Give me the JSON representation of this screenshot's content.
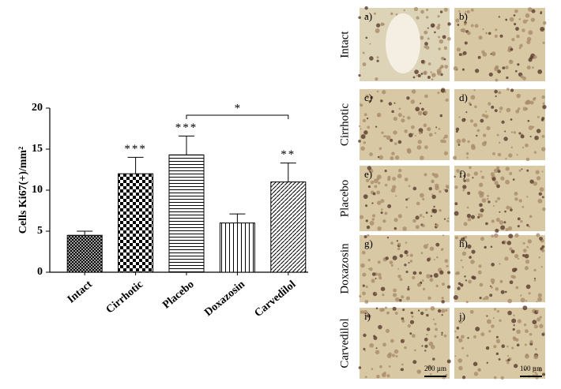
{
  "chart_data": {
    "type": "bar",
    "ylabel": "Cells Ki67(+)/mm²",
    "categories": [
      "Intact",
      "Cirrhotic",
      "Placebo",
      "Doxazosin",
      "Carvedilol"
    ],
    "values": [
      4.5,
      12,
      14.3,
      6,
      11
    ],
    "errors": [
      0.5,
      2,
      2.3,
      1.1,
      2.3
    ],
    "patterns": [
      "crosshatch",
      "checker",
      "hlines",
      "vlines",
      "diagonal"
    ],
    "color": "#000000",
    "ylim": [
      0,
      20
    ],
    "yticks": [
      0,
      5,
      10,
      15,
      20
    ],
    "annotations": [
      {
        "text": "***",
        "category": "Cirrhotic"
      },
      {
        "text": "***",
        "category": "Placebo"
      },
      {
        "text": "**",
        "category": "Carvedilol"
      }
    ],
    "bracket": {
      "text": "*",
      "from": "Placebo",
      "to": "Carvedilol"
    }
  },
  "panels": {
    "rows": [
      "Intact",
      "Cirrhotic",
      "Placebo",
      "Doxazosin",
      "Carvedilol"
    ],
    "labels": [
      "a)",
      "b)",
      "c)",
      "d)",
      "e)",
      "f)",
      "g)",
      "h)",
      "i)",
      "j)"
    ],
    "scale_bars": [
      "200 µm",
      "100 µm"
    ]
  }
}
